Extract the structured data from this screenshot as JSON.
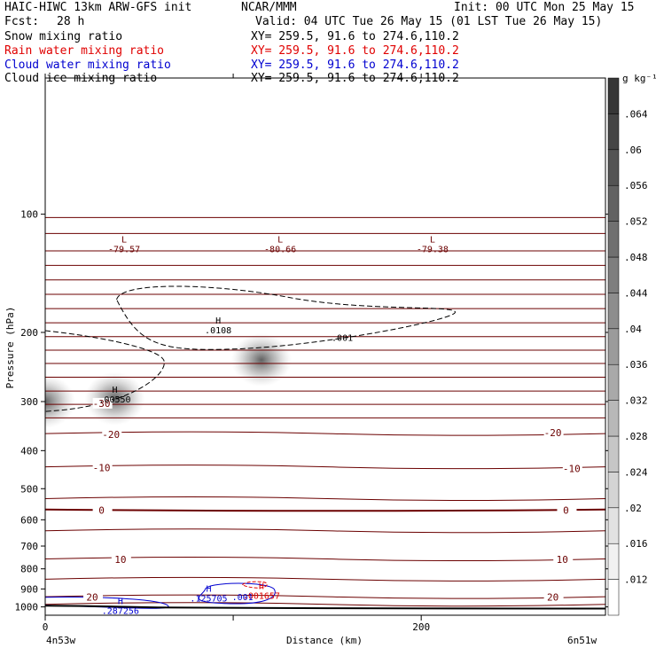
{
  "header": {
    "title": "HAIC-HIWC 13km ARW-GFS init",
    "org": "NCAR/MMM",
    "init": "Init: 00 UTC Mon 25 May 15",
    "fcst_label": "Fcst:",
    "fcst_value": "28 h",
    "valid": "Valid: 04 UTC Tue 26 May 15 (01 LST Tue 26 May 15)",
    "fields": [
      {
        "name": "Snow mixing ratio",
        "xy": "XY= 259.5, 91.6 to 274.6,110.2",
        "color": "#000000"
      },
      {
        "name": "Rain water mixing ratio",
        "xy": "XY= 259.5, 91.6 to 274.6,110.2",
        "color": "#e00000"
      },
      {
        "name": "Cloud water mixing ratio",
        "xy": "XY= 259.5, 91.6 to 274.6,110.2",
        "color": "#0000d0"
      },
      {
        "name": "Cloud ice mixing ratio",
        "xy": "XY= 259.5, 91.6 to 274.6,110.2",
        "color": "#000000"
      }
    ]
  },
  "chart_data": {
    "type": "contour",
    "ylabel": "Pressure (hPa)",
    "xlabel": "Distance (km)",
    "x_left_label": "4n53w",
    "x_right_label": "6n51w",
    "xlim": [
      0,
      298
    ],
    "ylim": [
      1050,
      45
    ],
    "y_scale": "log",
    "y_ticks": [
      100,
      200,
      300,
      400,
      500,
      600,
      700,
      800,
      900,
      1000
    ],
    "x_ticks": [
      0,
      100,
      200
    ],
    "x_tick_labels": [
      "0",
      "",
      "200"
    ],
    "colorbar": {
      "unit": "g kg⁻¹",
      "levels": [
        0.012,
        0.016,
        0.02,
        0.024,
        0.028,
        0.032,
        0.036,
        0.04,
        0.044,
        0.048,
        0.052,
        0.056,
        0.06,
        0.064
      ],
      "labels": [
        ".012",
        ".016",
        ".02",
        ".024",
        ".028",
        ".032",
        ".036",
        ".04",
        ".044",
        ".048",
        ".052",
        ".056",
        ".06",
        ".064"
      ]
    },
    "temperature_contours": [
      {
        "label": "-30",
        "temp": -30
      },
      {
        "label": "-20",
        "temp": -20
      },
      {
        "label": "-10",
        "temp": -10
      },
      {
        "label": "0",
        "temp": 0
      },
      {
        "label": "10",
        "temp": 10
      },
      {
        "label": "20",
        "temp": 20
      }
    ],
    "extrema": [
      {
        "type": "L",
        "value": "-79.57",
        "x": 42,
        "p": 118,
        "color": "#6b0000"
      },
      {
        "type": "L",
        "value": "-80.66",
        "x": 125,
        "p": 118,
        "color": "#6b0000"
      },
      {
        "type": "L",
        "value": "-79.38",
        "x": 206,
        "p": 118,
        "color": "#6b0000"
      },
      {
        "type": "H",
        "value": ".0108",
        "x": 92,
        "p": 190,
        "color": "#000000"
      },
      {
        "type": "H",
        "value": ".00550",
        "x": 37,
        "p": 285,
        "color": "#000000"
      },
      {
        "type": "H",
        "value": ".001657",
        "x": 115,
        "p": 900,
        "color": "#e00000"
      },
      {
        "type": "H",
        "value": ".125705",
        "x": 87,
        "p": 915,
        "color": "#0000d0"
      },
      {
        "type": "H",
        "value": ".287256",
        "x": 40,
        "p": 985,
        "color": "#0000d0"
      }
    ],
    "contour_labels": [
      {
        "text": ".001",
        "x": 158,
        "p": 210,
        "color": "#000000"
      },
      {
        "text": ".001",
        "x": 105,
        "p": 960,
        "color": "#0000d0"
      }
    ],
    "shaded_blobs": [
      {
        "x": 115,
        "p": 235,
        "value": 0.05
      },
      {
        "x": 37,
        "p": 295,
        "value": 0.05
      },
      {
        "x": 0,
        "p": 300,
        "value": 0.064
      }
    ],
    "terrain_label": ""
  }
}
